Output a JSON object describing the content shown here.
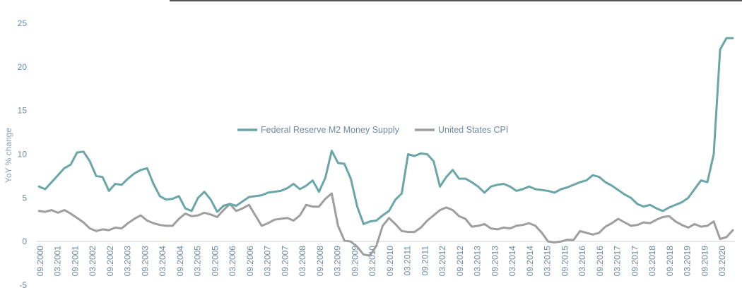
{
  "chart_data": {
    "type": "line",
    "title": "",
    "xlabel": "",
    "ylabel": "YoY % change",
    "ylim": [
      -5,
      25
    ],
    "yticks": [
      "25",
      "20",
      "15",
      "10",
      "5",
      "0",
      "-5"
    ],
    "x_tick_labels": [
      "09.2000",
      "03.2001",
      "09.2001",
      "03.2002",
      "09.2002",
      "03.2003",
      "09.2003",
      "03.2004",
      "09.2004",
      "03.2005",
      "09.2005",
      "03.2006",
      "09.2006",
      "03.2007",
      "09.2007",
      "03.2008",
      "09.2008",
      "03.2009",
      "09.2009",
      "03.2010",
      "09.2010",
      "03.2011",
      "09.2011",
      "03.2012",
      "09.2012",
      "03.2013",
      "09.2013",
      "03.2014",
      "09.2014",
      "03.2015",
      "09.2015",
      "03.2016",
      "09.2016",
      "03.2017",
      "09.2017",
      "03.2018",
      "09.2018",
      "03.2019",
      "09.2019",
      "03.2020"
    ],
    "grid": false,
    "legend_position": "center",
    "series": [
      {
        "name": "Federal Reserve M2 Money Supply",
        "color": "#6aa5a8",
        "values": [
          6.3,
          6.0,
          6.8,
          7.6,
          8.4,
          8.8,
          10.2,
          10.3,
          9.2,
          7.5,
          7.4,
          5.8,
          6.6,
          6.5,
          7.2,
          7.8,
          8.2,
          8.4,
          6.6,
          5.2,
          4.8,
          4.9,
          5.2,
          3.8,
          3.5,
          5.0,
          5.7,
          4.8,
          3.4,
          4.1,
          4.3,
          4.1,
          4.6,
          5.1,
          5.2,
          5.3,
          5.6,
          5.7,
          5.8,
          6.1,
          6.6,
          6.0,
          6.4,
          7.0,
          5.7,
          7.3,
          10.4,
          9.0,
          8.9,
          7.2,
          4.0,
          2.0,
          2.3,
          2.4,
          3.0,
          3.5,
          4.8,
          5.5,
          10.0,
          9.8,
          10.1,
          10.0,
          9.2,
          6.3,
          7.4,
          8.2,
          7.2,
          7.2,
          6.8,
          6.3,
          5.6,
          6.3,
          6.5,
          6.6,
          6.3,
          5.8,
          6.0,
          6.3,
          6.0,
          5.9,
          5.8,
          5.6,
          6.0,
          6.2,
          6.5,
          6.8,
          7.0,
          7.6,
          7.4,
          6.8,
          6.4,
          5.9,
          5.4,
          5.0,
          4.3,
          4.0,
          4.2,
          3.8,
          3.5,
          3.9,
          4.2,
          4.5,
          5.0,
          6.0,
          7.0,
          6.8,
          10.0,
          22.0,
          23.3,
          23.3
        ],
        "x_start_date": "2000-09"
      },
      {
        "name": "United States CPI",
        "color": "#9e9e9e",
        "values": [
          3.5,
          3.4,
          3.6,
          3.3,
          3.6,
          3.2,
          2.7,
          2.2,
          1.5,
          1.2,
          1.4,
          1.3,
          1.6,
          1.5,
          2.1,
          2.6,
          3.0,
          2.4,
          2.1,
          1.9,
          1.8,
          1.8,
          2.6,
          3.2,
          2.9,
          3.0,
          3.3,
          3.1,
          2.8,
          3.6,
          4.3,
          3.5,
          3.8,
          4.2,
          3.0,
          1.8,
          2.1,
          2.5,
          2.6,
          2.7,
          2.4,
          3.0,
          4.2,
          4.0,
          4.0,
          4.9,
          5.5,
          1.8,
          0.1,
          0.0,
          -0.6,
          -1.5,
          -1.6,
          -0.5,
          1.8,
          2.7,
          2.0,
          1.2,
          1.1,
          1.1,
          1.6,
          2.4,
          3.0,
          3.6,
          3.9,
          3.6,
          2.9,
          2.6,
          1.7,
          1.8,
          2.0,
          1.5,
          1.4,
          1.6,
          1.5,
          1.8,
          1.9,
          2.1,
          1.8,
          1.0,
          0.0,
          -0.1,
          0.0,
          0.2,
          0.2,
          1.2,
          1.0,
          0.8,
          1.0,
          1.7,
          2.1,
          2.6,
          2.2,
          1.8,
          1.9,
          2.2,
          2.1,
          2.5,
          2.8,
          2.9,
          2.3,
          1.9,
          1.6,
          2.0,
          1.7,
          1.8,
          2.3,
          0.3,
          0.5,
          1.3
        ],
        "x_start_date": "2000-09"
      }
    ]
  }
}
